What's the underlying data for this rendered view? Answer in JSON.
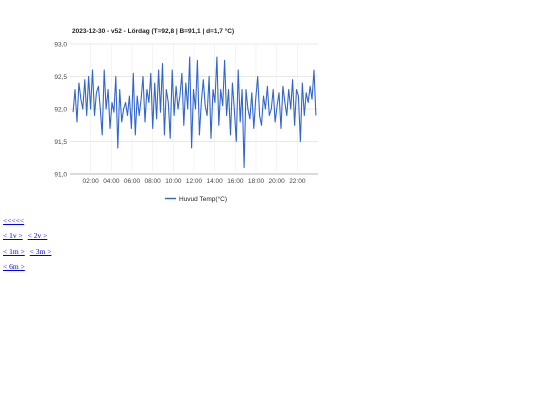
{
  "chart_data": {
    "type": "line",
    "title": "2023-12-30 - v52 - Lördag (T=92,8 | B=91,1 | d=1,7 °C)",
    "xlabel": "",
    "ylabel": "",
    "xlim": [
      0,
      24
    ],
    "ylim": [
      91.0,
      93.0
    ],
    "yticks": [
      91.0,
      91.5,
      92.0,
      92.5,
      93.0
    ],
    "ytick_labels": [
      "91,0",
      "91,5",
      "92,0",
      "92,5",
      "93,0"
    ],
    "xticks": [
      2,
      4,
      6,
      8,
      10,
      12,
      14,
      16,
      18,
      20,
      22
    ],
    "xtick_labels": [
      "02:00",
      "04:00",
      "06:00",
      "08:00",
      "10:00",
      "12:00",
      "14:00",
      "16:00",
      "18:00",
      "20:00",
      "22:00"
    ],
    "grid": true,
    "legend_position": "bottom",
    "series": [
      {
        "name": "Huvud Temp(°C)",
        "color": "#3366cc",
        "y": [
          91.95,
          92.3,
          91.8,
          92.4,
          92.15,
          92.0,
          92.45,
          91.9,
          92.5,
          92.0,
          92.6,
          91.9,
          92.25,
          92.35,
          92.0,
          91.6,
          92.6,
          92.0,
          92.3,
          91.7,
          92.1,
          91.95,
          92.5,
          91.4,
          92.3,
          91.8,
          92.0,
          92.1,
          91.9,
          92.2,
          91.7,
          92.55,
          91.6,
          92.2,
          91.9,
          92.15,
          92.5,
          91.8,
          92.3,
          92.1,
          92.55,
          91.7,
          92.4,
          91.85,
          92.6,
          91.95,
          92.7,
          91.6,
          92.3,
          92.1,
          91.55,
          92.6,
          91.9,
          92.35,
          92.0,
          92.2,
          92.55,
          91.75,
          92.4,
          92.0,
          92.8,
          91.4,
          92.3,
          92.0,
          92.75,
          91.6,
          92.1,
          92.45,
          92.05,
          91.9,
          92.5,
          91.55,
          92.3,
          92.1,
          92.8,
          91.75,
          92.3,
          92.05,
          92.75,
          91.9,
          92.3,
          91.6,
          92.4,
          92.0,
          91.5,
          92.6,
          91.8,
          92.3,
          91.1,
          92.3,
          92.0,
          91.85,
          92.25,
          91.7,
          92.15,
          92.5,
          91.9,
          91.75,
          92.2,
          92.0,
          92.35,
          91.9,
          92.0,
          92.3,
          91.8,
          92.05,
          92.25,
          91.7,
          92.35,
          92.1,
          91.9,
          92.3,
          92.0,
          92.45,
          91.75,
          92.3,
          92.2,
          91.5,
          92.4,
          91.9,
          92.25,
          92.1,
          92.35,
          92.15,
          92.6,
          91.9
        ]
      }
    ]
  },
  "nav": {
    "row1": [
      "<<<<<"
    ],
    "row2": [
      "< 1v >",
      "< 2v >"
    ],
    "row3": [
      "< 1m >",
      "< 3m >"
    ],
    "row4": [
      "< 6m >"
    ]
  }
}
